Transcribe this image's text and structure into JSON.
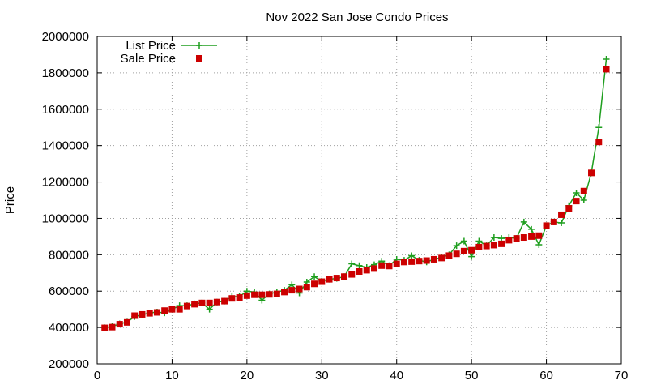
{
  "chart_data": {
    "type": "line",
    "title": "Nov 2022 San Jose Condo Prices",
    "xlabel": "",
    "ylabel": "Price",
    "xlim": [
      0,
      70
    ],
    "ylim": [
      200000,
      2000000
    ],
    "xticks": [
      0,
      10,
      20,
      30,
      40,
      50,
      60,
      70
    ],
    "yticks": [
      200000,
      400000,
      600000,
      800000,
      1000000,
      1200000,
      1400000,
      1600000,
      1800000,
      2000000
    ],
    "grid": true,
    "legend_position": "top-left",
    "series": [
      {
        "name": "List Price",
        "style": "line-plus",
        "color": "#1e9e1e",
        "x": [
          1,
          2,
          3,
          4,
          5,
          6,
          7,
          8,
          9,
          10,
          11,
          12,
          13,
          14,
          15,
          16,
          17,
          18,
          19,
          20,
          21,
          22,
          23,
          24,
          25,
          26,
          27,
          28,
          29,
          30,
          31,
          32,
          33,
          34,
          35,
          36,
          37,
          38,
          39,
          40,
          41,
          42,
          43,
          44,
          45,
          46,
          47,
          48,
          49,
          50,
          51,
          52,
          53,
          54,
          55,
          56,
          57,
          58,
          59,
          60,
          61,
          62,
          63,
          64,
          65,
          66,
          67,
          68
        ],
        "values": [
          399000,
          405000,
          420000,
          430000,
          460000,
          470000,
          480000,
          485000,
          480000,
          500000,
          520000,
          520000,
          530000,
          535000,
          500000,
          540000,
          545000,
          570000,
          570000,
          600000,
          595000,
          550000,
          585000,
          595000,
          605000,
          635000,
          590000,
          650000,
          680000,
          655000,
          665000,
          670000,
          680000,
          750000,
          740000,
          730000,
          745000,
          765000,
          740000,
          775000,
          770000,
          795000,
          770000,
          760000,
          775000,
          785000,
          800000,
          850000,
          875000,
          790000,
          875000,
          850000,
          895000,
          890000,
          895000,
          890000,
          980000,
          940000,
          855000,
          960000,
          980000,
          975000,
          1070000,
          1140000,
          1100000,
          1250000,
          1500000,
          1875000
        ]
      },
      {
        "name": "Sale Price",
        "style": "square-points",
        "color": "#cc0000",
        "x": [
          1,
          2,
          3,
          4,
          5,
          6,
          7,
          8,
          9,
          10,
          11,
          12,
          13,
          14,
          15,
          16,
          17,
          18,
          19,
          20,
          21,
          22,
          23,
          24,
          25,
          26,
          27,
          28,
          29,
          30,
          31,
          32,
          33,
          34,
          35,
          36,
          37,
          38,
          39,
          40,
          41,
          42,
          43,
          44,
          45,
          46,
          47,
          48,
          49,
          50,
          51,
          52,
          53,
          54,
          55,
          56,
          57,
          58,
          59,
          60,
          61,
          62,
          63,
          64,
          65,
          66,
          67,
          68
        ],
        "values": [
          398000,
          402000,
          418000,
          428000,
          465000,
          472000,
          478000,
          483000,
          493000,
          500000,
          500000,
          518000,
          528000,
          535000,
          535000,
          540000,
          545000,
          560000,
          565000,
          575000,
          580000,
          580000,
          582000,
          585000,
          595000,
          605000,
          612000,
          622000,
          640000,
          652000,
          665000,
          672000,
          680000,
          692000,
          708000,
          715000,
          724000,
          740000,
          738000,
          750000,
          760000,
          762000,
          765000,
          768000,
          775000,
          782000,
          795000,
          805000,
          820000,
          825000,
          842000,
          848000,
          853000,
          860000,
          880000,
          890000,
          895000,
          900000,
          905000,
          960000,
          980000,
          1020000,
          1055000,
          1095000,
          1150000,
          1250000,
          1420000,
          1820000
        ]
      }
    ]
  }
}
